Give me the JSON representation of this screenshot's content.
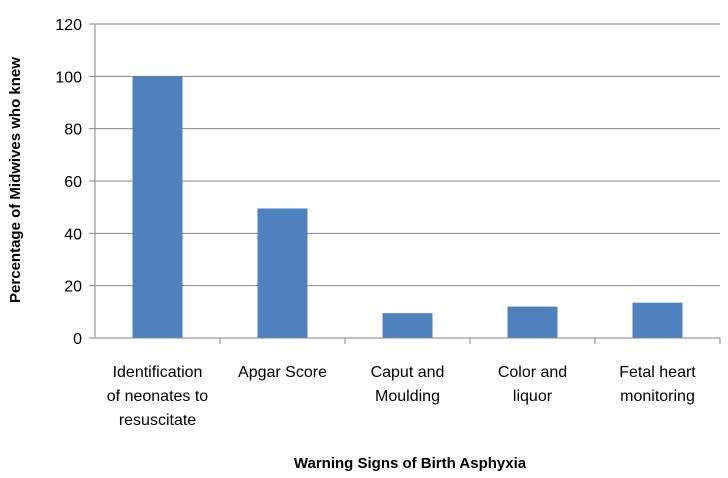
{
  "chart_data": {
    "type": "bar",
    "categories": [
      [
        "Identification",
        "of neonates to",
        "resuscitate"
      ],
      [
        "Apgar Score"
      ],
      [
        "Caput and",
        "Moulding"
      ],
      [
        "Color and",
        "liquor"
      ],
      [
        "Fetal heart",
        "monitoring"
      ]
    ],
    "values": [
      100,
      49.5,
      9.5,
      12,
      13.5
    ],
    "xlabel": "Warning Signs of Birth Asphyxia",
    "ylabel": "Percentage of Midwives who knew",
    "ylim": [
      0,
      120
    ],
    "yticks": [
      0,
      20,
      40,
      60,
      80,
      100,
      120
    ],
    "grid": true,
    "legend": "none",
    "bar_color": "#4F81BD"
  }
}
